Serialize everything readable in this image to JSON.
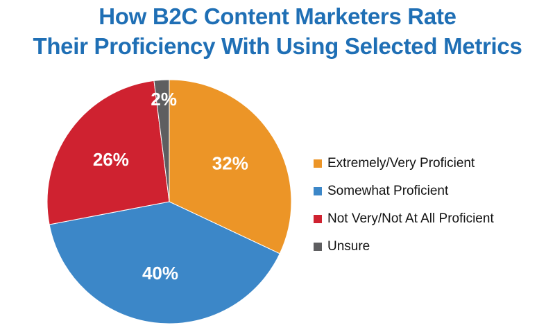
{
  "colors": {
    "title": "#1f6fb5",
    "label": "#ffffff"
  },
  "chart_data": {
    "type": "pie",
    "title": "How B2C Content Marketers Rate Their Proficiency With Using Selected Metrics",
    "title_lines": [
      "How B2C Content Marketers Rate",
      "Their Proficiency With Using Selected Metrics"
    ],
    "legend_position": "right",
    "slices": [
      {
        "label": "Extremely/Very Proficient",
        "value": 32,
        "value_label": "32%",
        "color": "#ec9527"
      },
      {
        "label": "Somewhat Proficient",
        "value": 40,
        "value_label": "40%",
        "color": "#3c87c8"
      },
      {
        "label": "Not Very/Not At All Proficient",
        "value": 26,
        "value_label": "26%",
        "color": "#cf2230"
      },
      {
        "label": "Unsure",
        "value": 2,
        "value_label": "2%",
        "color": "#5e5e60"
      }
    ]
  }
}
